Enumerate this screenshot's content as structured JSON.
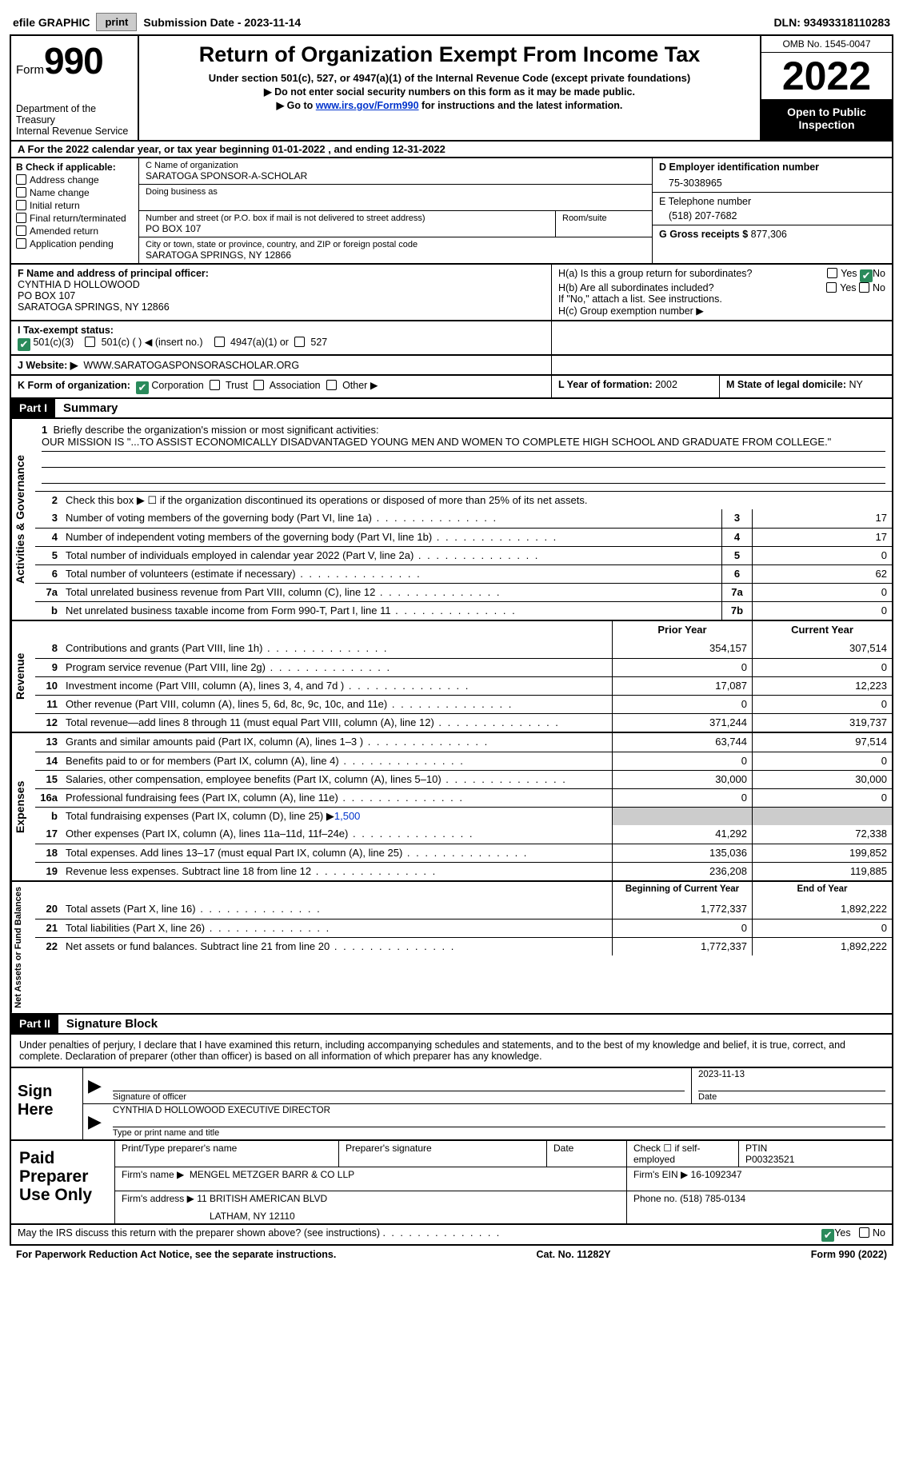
{
  "topbar": {
    "efile_label": "efile GRAPHIC",
    "print_btn": "print",
    "submission_label": "Submission Date - 2023-11-14",
    "dln": "DLN: 93493318110283"
  },
  "header": {
    "form_label": "Form",
    "form_number": "990",
    "dept": "Department of the Treasury",
    "irs": "Internal Revenue Service",
    "title": "Return of Organization Exempt From Income Tax",
    "subtitle": "Under section 501(c), 527, or 4947(a)(1) of the Internal Revenue Code (except private foundations)",
    "note1": "▶ Do not enter social security numbers on this form as it may be made public.",
    "note2_pre": "▶ Go to ",
    "note2_link": "www.irs.gov/Form990",
    "note2_post": " for instructions and the latest information.",
    "omb": "OMB No. 1545-0047",
    "year": "2022",
    "open": "Open to Public Inspection"
  },
  "period": {
    "line": "A For the 2022 calendar year, or tax year beginning 01-01-2022   , and ending 12-31-2022"
  },
  "box_b": {
    "label": "B Check if applicable:",
    "items": [
      "Address change",
      "Name change",
      "Initial return",
      "Final return/terminated",
      "Amended return",
      "Application pending"
    ]
  },
  "box_c": {
    "name_label": "C Name of organization",
    "name": "SARATOGA SPONSOR-A-SCHOLAR",
    "dba_label": "Doing business as",
    "street_label": "Number and street (or P.O. box if mail is not delivered to street address)",
    "room_label": "Room/suite",
    "street": "PO BOX 107",
    "city_label": "City or town, state or province, country, and ZIP or foreign postal code",
    "city": "SARATOGA SPRINGS, NY  12866"
  },
  "box_d": {
    "label": "D Employer identification number",
    "value": "75-3038965"
  },
  "box_e": {
    "label": "E Telephone number",
    "value": "(518) 207-7682"
  },
  "box_g": {
    "label": "G Gross receipts $",
    "value": "877,306"
  },
  "box_f": {
    "label": "F Name and address of principal officer:",
    "name": "CYNTHIA D HOLLOWOOD",
    "street": "PO BOX 107",
    "city": "SARATOGA SPRINGS, NY  12866"
  },
  "box_h": {
    "ha": "H(a)  Is this a group return for subordinates?",
    "hb": "H(b)  Are all subordinates included?",
    "hb_note": "If \"No,\" attach a list. See instructions.",
    "hc": "H(c)  Group exemption number ▶",
    "yes": "Yes",
    "no": "No"
  },
  "box_i": {
    "label": "I    Tax-exempt status:",
    "opt1": "501(c)(3)",
    "opt2": "501(c) (  ) ◀ (insert no.)",
    "opt3": "4947(a)(1) or",
    "opt4": "527"
  },
  "box_j": {
    "label": "J   Website: ▶",
    "value": "WWW.SARATOGASPONSORASCHOLAR.ORG"
  },
  "box_k": {
    "label": "K Form of organization:",
    "opts": [
      "Corporation",
      "Trust",
      "Association",
      "Other ▶"
    ]
  },
  "box_l": {
    "label": "L Year of formation:",
    "value": "2002"
  },
  "box_m": {
    "label": "M State of legal domicile:",
    "value": "NY"
  },
  "part1": {
    "num": "Part I",
    "title": "Summary"
  },
  "activities": {
    "side": "Activities & Governance",
    "line1": "Briefly describe the organization's mission or most significant activities:",
    "mission": "OUR MISSION IS \"...TO ASSIST ECONOMICALLY DISADVANTAGED YOUNG MEN AND WOMEN TO COMPLETE HIGH SCHOOL AND GRADUATE FROM COLLEGE.\"",
    "line2": "Check this box ▶ ☐  if the organization discontinued its operations or disposed of more than 25% of its net assets.",
    "rows": [
      {
        "n": "3",
        "t": "Number of voting members of the governing body (Part VI, line 1a)",
        "b": "3",
        "v": "17"
      },
      {
        "n": "4",
        "t": "Number of independent voting members of the governing body (Part VI, line 1b)",
        "b": "4",
        "v": "17"
      },
      {
        "n": "5",
        "t": "Total number of individuals employed in calendar year 2022 (Part V, line 2a)",
        "b": "5",
        "v": "0"
      },
      {
        "n": "6",
        "t": "Total number of volunteers (estimate if necessary)",
        "b": "6",
        "v": "62"
      },
      {
        "n": "7a",
        "t": "Total unrelated business revenue from Part VIII, column (C), line 12",
        "b": "7a",
        "v": "0"
      },
      {
        "n": "b",
        "t": "Net unrelated business taxable income from Form 990-T, Part I, line 11",
        "b": "7b",
        "v": "0"
      }
    ]
  },
  "revenue": {
    "side": "Revenue",
    "hdr_prior": "Prior Year",
    "hdr_current": "Current Year",
    "rows": [
      {
        "n": "8",
        "t": "Contributions and grants (Part VIII, line 1h)",
        "p": "354,157",
        "c": "307,514"
      },
      {
        "n": "9",
        "t": "Program service revenue (Part VIII, line 2g)",
        "p": "0",
        "c": "0"
      },
      {
        "n": "10",
        "t": "Investment income (Part VIII, column (A), lines 3, 4, and 7d )",
        "p": "17,087",
        "c": "12,223"
      },
      {
        "n": "11",
        "t": "Other revenue (Part VIII, column (A), lines 5, 6d, 8c, 9c, 10c, and 11e)",
        "p": "0",
        "c": "0"
      },
      {
        "n": "12",
        "t": "Total revenue—add lines 8 through 11 (must equal Part VIII, column (A), line 12)",
        "p": "371,244",
        "c": "319,737"
      }
    ]
  },
  "expenses": {
    "side": "Expenses",
    "rows": [
      {
        "n": "13",
        "t": "Grants and similar amounts paid (Part IX, column (A), lines 1–3 )",
        "p": "63,744",
        "c": "97,514"
      },
      {
        "n": "14",
        "t": "Benefits paid to or for members (Part IX, column (A), line 4)",
        "p": "0",
        "c": "0"
      },
      {
        "n": "15",
        "t": "Salaries, other compensation, employee benefits (Part IX, column (A), lines 5–10)",
        "p": "30,000",
        "c": "30,000"
      },
      {
        "n": "16a",
        "t": "Professional fundraising fees (Part IX, column (A), line 11e)",
        "p": "0",
        "c": "0"
      }
    ],
    "line_b": {
      "n": "b",
      "t": "Total fundraising expenses (Part IX, column (D), line 25) ▶",
      "link": "1,500"
    },
    "rows2": [
      {
        "n": "17",
        "t": "Other expenses (Part IX, column (A), lines 11a–11d, 11f–24e)",
        "p": "41,292",
        "c": "72,338"
      },
      {
        "n": "18",
        "t": "Total expenses. Add lines 13–17 (must equal Part IX, column (A), line 25)",
        "p": "135,036",
        "c": "199,852"
      },
      {
        "n": "19",
        "t": "Revenue less expenses. Subtract line 18 from line 12",
        "p": "236,208",
        "c": "119,885"
      }
    ]
  },
  "netassets": {
    "side": "Net Assets or Fund Balances",
    "hdr_begin": "Beginning of Current Year",
    "hdr_end": "End of Year",
    "rows": [
      {
        "n": "20",
        "t": "Total assets (Part X, line 16)",
        "p": "1,772,337",
        "c": "1,892,222"
      },
      {
        "n": "21",
        "t": "Total liabilities (Part X, line 26)",
        "p": "0",
        "c": "0"
      },
      {
        "n": "22",
        "t": "Net assets or fund balances. Subtract line 21 from line 20",
        "p": "1,772,337",
        "c": "1,892,222"
      }
    ]
  },
  "part2": {
    "num": "Part II",
    "title": "Signature Block"
  },
  "sig_decl": "Under penalties of perjury, I declare that I have examined this return, including accompanying schedules and statements, and to the best of my knowledge and belief, it is true, correct, and complete. Declaration of preparer (other than officer) is based on all information of which preparer has any knowledge.",
  "sign": {
    "label": "Sign Here",
    "sig_officer": "Signature of officer",
    "date": "Date",
    "date_val": "2023-11-13",
    "name_title": "CYNTHIA D HOLLOWOOD  EXECUTIVE DIRECTOR",
    "name_label": "Type or print name and title"
  },
  "preparer": {
    "label": "Paid Preparer Use Only",
    "print_name": "Print/Type preparer's name",
    "sig": "Preparer's signature",
    "date": "Date",
    "check_self": "Check ☐ if self-employed",
    "ptin_label": "PTIN",
    "ptin": "P00323521",
    "firm_name_label": "Firm's name    ▶",
    "firm_name": "MENGEL METZGER BARR & CO LLP",
    "firm_ein_label": "Firm's EIN ▶",
    "firm_ein": "16-1092347",
    "firm_addr_label": "Firm's address ▶",
    "firm_addr1": "11 BRITISH AMERICAN BLVD",
    "firm_addr2": "LATHAM, NY  12110",
    "phone_label": "Phone no.",
    "phone": "(518) 785-0134"
  },
  "discuss": {
    "text": "May the IRS discuss this return with the preparer shown above? (see instructions)",
    "yes": "Yes",
    "no": "No"
  },
  "footer": {
    "left": "For Paperwork Reduction Act Notice, see the separate instructions.",
    "mid": "Cat. No. 11282Y",
    "right": "Form 990 (2022)"
  },
  "colors": {
    "black": "#000000",
    "grey": "#cccccc",
    "green": "#2a8a5b",
    "link": "#0033cc",
    "white": "#ffffff"
  }
}
